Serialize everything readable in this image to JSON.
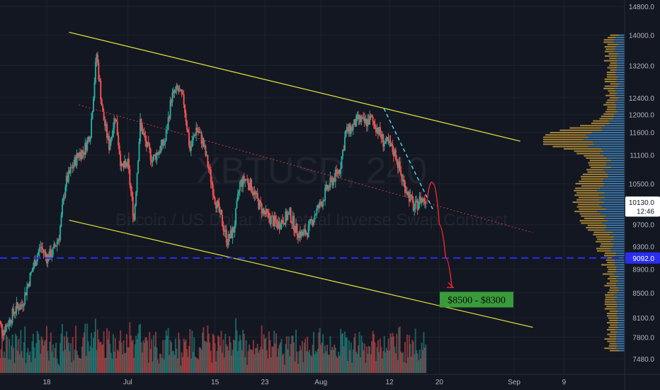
{
  "chart_data": {
    "type": "candlestick",
    "symbol_watermark": "XBTUSD, 240",
    "subtitle_watermark": "Bitcoin / US Dollar Perpetual Inverse Swap Contract",
    "y_axis": {
      "ticks": [
        14800,
        14000,
        13200,
        12400,
        12000,
        11600,
        11100,
        10500,
        9700,
        9300,
        8900,
        8500,
        8100,
        7800,
        7480
      ],
      "tick_labels": [
        "14800.0",
        "14000.0",
        "13200.0",
        "12400.0",
        "12000.0",
        "11600.0",
        "11100.0",
        "10500.0",
        "9700.0",
        "9300.0",
        "8900.0",
        "8500.0",
        "8100.0",
        "7800.0",
        "7480.0"
      ],
      "scale": "log",
      "range": [
        7350,
        15200
      ]
    },
    "x_axis": {
      "tick_labels": [
        "18",
        "Jul",
        "15",
        "23",
        "Aug",
        "12",
        "20",
        "Sep",
        "9"
      ]
    },
    "price_badges": [
      {
        "label": "10130.0",
        "value": 10130,
        "color": "#ffffff",
        "text_color": "#131722"
      },
      {
        "label": "12:46",
        "value": 9960,
        "color": "#ffffff",
        "text_color": "#131722"
      },
      {
        "label": "9092.0",
        "value": 9092,
        "color": "#2a2eec",
        "text_color": "#ffffff"
      }
    ],
    "support_line": {
      "value": 9092,
      "color": "#2a2eec",
      "style": "dashed"
    },
    "price_path": [
      [
        "Jun 10",
        8100
      ],
      [
        "Jun 11",
        7900
      ],
      [
        "Jun 12",
        8050
      ],
      [
        "Jun 13",
        8250
      ],
      [
        "Jun 14",
        8300
      ],
      [
        "Jun 15",
        8650
      ],
      [
        "Jun 16",
        9000
      ],
      [
        "Jun 17",
        9300
      ],
      [
        "Jun 18",
        9100
      ],
      [
        "Jun 19",
        9200
      ],
      [
        "Jun 20",
        9500
      ],
      [
        "Jun 21",
        10500
      ],
      [
        "Jun 22",
        10800
      ],
      [
        "Jun 23",
        11100
      ],
      [
        "Jun 24",
        11200
      ],
      [
        "Jun 25",
        11600
      ],
      [
        "Jun 26",
        13500
      ],
      [
        "Jun 27",
        12000
      ],
      [
        "Jun 28",
        11300
      ],
      [
        "Jun 29",
        12000
      ],
      [
        "Jun 30",
        10800
      ],
      [
        "Jul 01",
        10900
      ],
      [
        "Jul 02",
        9800
      ],
      [
        "Jul 03",
        11800
      ],
      [
        "Jul 04",
        11300
      ],
      [
        "Jul 05",
        11000
      ],
      [
        "Jul 06",
        11200
      ],
      [
        "Jul 07",
        11400
      ],
      [
        "Jul 08",
        12400
      ],
      [
        "Jul 09",
        12600
      ],
      [
        "Jul 10",
        12300
      ],
      [
        "Jul 11",
        11200
      ],
      [
        "Jul 12",
        11700
      ],
      [
        "Jul 13",
        11400
      ],
      [
        "Jul 14",
        10800
      ],
      [
        "Jul 15",
        10200
      ],
      [
        "Jul 16",
        9800
      ],
      [
        "Jul 17",
        9400
      ],
      [
        "Jul 18",
        9600
      ],
      [
        "Jul 19",
        10500
      ],
      [
        "Jul 20",
        10600
      ],
      [
        "Jul 21",
        10400
      ],
      [
        "Jul 22",
        10100
      ],
      [
        "Jul 23",
        9900
      ],
      [
        "Jul 24",
        9800
      ],
      [
        "Jul 25",
        9700
      ],
      [
        "Jul 26",
        9800
      ],
      [
        "Jul 27",
        9900
      ],
      [
        "Jul 28",
        9600
      ],
      [
        "Jul 29",
        9500
      ],
      [
        "Jul 30",
        9600
      ],
      [
        "Jul 31",
        9900
      ],
      [
        "Aug 01",
        10100
      ],
      [
        "Aug 02",
        10400
      ],
      [
        "Aug 03",
        10600
      ],
      [
        "Aug 04",
        10800
      ],
      [
        "Aug 05",
        11600
      ],
      [
        "Aug 06",
        11700
      ],
      [
        "Aug 07",
        11900
      ],
      [
        "Aug 08",
        11800
      ],
      [
        "Aug 09",
        11900
      ],
      [
        "Aug 10",
        11700
      ],
      [
        "Aug 11",
        11400
      ],
      [
        "Aug 12",
        11300
      ],
      [
        "Aug 13",
        11100
      ],
      [
        "Aug 14",
        10600
      ],
      [
        "Aug 15",
        10300
      ],
      [
        "Aug 16",
        10000
      ],
      [
        "Aug 17",
        10200
      ],
      [
        "Aug 18",
        10130
      ]
    ],
    "projection": {
      "color": "#e0282e",
      "points": [
        [
          "Aug 18",
          10130
        ],
        [
          "Aug 19",
          10500
        ],
        [
          "Aug 20",
          9700
        ],
        [
          "Aug 21",
          9100
        ],
        [
          "Aug 22",
          8600
        ]
      ]
    },
    "channel": {
      "color": "#d4d63b",
      "upper": [
        [
          "Jun 25",
          14000
        ],
        [
          "Sep 02",
          11400
        ]
      ],
      "lower": [
        [
          "Jun 25",
          9650
        ],
        [
          "Sep 04",
          7950
        ]
      ]
    },
    "mid_line": {
      "color": "#c23b3b",
      "points": [
        [
          "Jun 22",
          11900
        ],
        [
          "Sep 04",
          9550
        ]
      ]
    },
    "steep_line": {
      "color": "#4fd1e0",
      "points": [
        [
          "Aug 12",
          11950
        ],
        [
          "Aug 19",
          9980
        ]
      ]
    },
    "target_box": {
      "label": "$8500 - $8300",
      "bg": "#3a9b3a",
      "text_color": "#0a0a0a",
      "value": 8400
    },
    "volume_profile": {
      "colors": {
        "up": "#4e9bd8",
        "down": "#d9a83a"
      }
    },
    "colors": {
      "up": "#26a69a",
      "down": "#ef5350",
      "background": "#131722",
      "grid": "#1e222d"
    },
    "grid": true
  }
}
